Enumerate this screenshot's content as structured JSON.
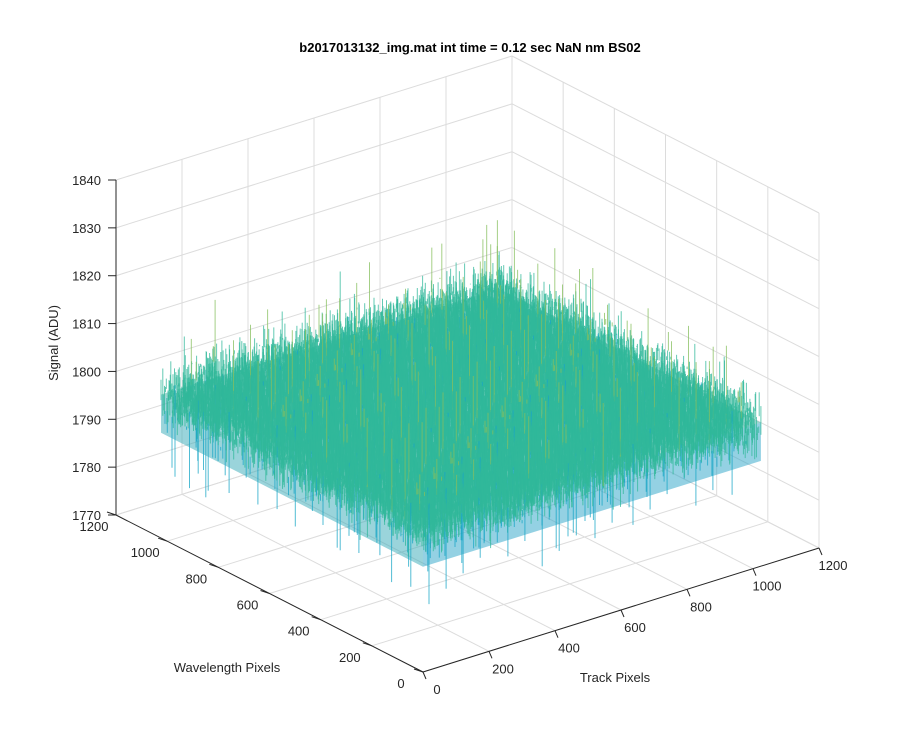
{
  "chart_data": {
    "type": "surface",
    "title": "b2017013132_img.mat int time = 0.12 sec  NaN nm BS02",
    "xlabel": "Track Pixels",
    "ylabel": "Wavelength Pixels",
    "zlabel": "Signal (ADU)",
    "xlim": [
      0,
      1200
    ],
    "ylim": [
      0,
      1200
    ],
    "zlim": [
      1770,
      1840
    ],
    "x_ticks": [
      "0",
      "200",
      "400",
      "600",
      "800",
      "1000",
      "1200"
    ],
    "y_ticks": [
      "0",
      "200",
      "400",
      "600",
      "800",
      "1000",
      "1200"
    ],
    "z_ticks": [
      "1770",
      "1780",
      "1790",
      "1800",
      "1810",
      "1820",
      "1830",
      "1840"
    ],
    "grid": true,
    "data_extent": {
      "x": [
        0,
        1024
      ],
      "y": [
        0,
        1024
      ]
    },
    "signal_mean": 1800,
    "signal_spread": [
      1775,
      1826
    ],
    "colormap": [
      "#2a7fd4",
      "#18a6c6",
      "#30b89a",
      "#86bf5e",
      "#c8bc3c"
    ]
  }
}
